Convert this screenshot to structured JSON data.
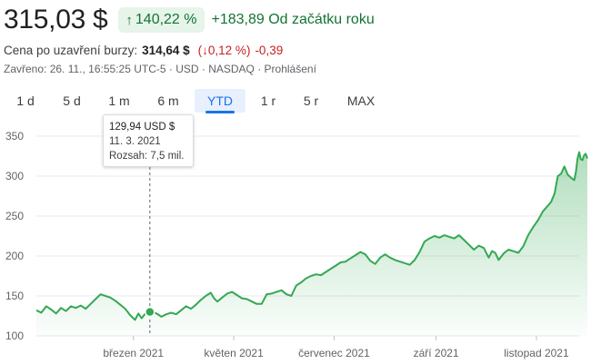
{
  "header": {
    "price": "315,03 $",
    "change_pct": "140,22 %",
    "change_abs": "+183,89 Od začátku roku",
    "close_label": "Cena po uzavření burzy:",
    "close_value": "314,64 $",
    "close_change_pct": "0,12 %",
    "close_change_abs": "-0,39",
    "meta": "Zavřeno: 26. 11., 16:55:25 UTC-5 · USD · NASDAQ · Prohlášení"
  },
  "tabs": [
    {
      "label": "1 d",
      "active": false
    },
    {
      "label": "5 d",
      "active": false
    },
    {
      "label": "1 m",
      "active": false
    },
    {
      "label": "6 m",
      "active": false
    },
    {
      "label": "YTD",
      "active": true
    },
    {
      "label": "1 r",
      "active": false
    },
    {
      "label": "5 r",
      "active": false
    },
    {
      "label": "MAX",
      "active": false
    }
  ],
  "tooltip": {
    "price": "129,94 USD $",
    "date": "11. 3. 2021",
    "volume": "Rozsah: 7,5 mil."
  },
  "colors": {
    "line": "#34a853",
    "fill_top": "#34a853",
    "grid": "#e8eaed",
    "axis_text": "#5f6368",
    "positive": "#137333",
    "negative": "#c5221f"
  },
  "chart_data": {
    "type": "area",
    "ylim": [
      100,
      350
    ],
    "y_ticks": [
      100,
      150,
      200,
      250,
      300,
      350
    ],
    "x_range_days": [
      0,
      330
    ],
    "x_ticks": [
      {
        "label": "březen 2021",
        "day": 59
      },
      {
        "label": "květen 2021",
        "day": 120
      },
      {
        "label": "červenec 2021",
        "day": 181
      },
      {
        "label": "září 2021",
        "day": 243
      },
      {
        "label": "listopad 2021",
        "day": 304
      }
    ],
    "highlight": {
      "day": 69,
      "value": 130
    },
    "series": [
      {
        "values": [
          [
            0,
            132
          ],
          [
            3,
            129
          ],
          [
            6,
            137
          ],
          [
            9,
            133
          ],
          [
            12,
            128
          ],
          [
            15,
            135
          ],
          [
            18,
            131
          ],
          [
            21,
            137
          ],
          [
            24,
            135
          ],
          [
            27,
            138
          ],
          [
            30,
            134
          ],
          [
            33,
            140
          ],
          [
            36,
            146
          ],
          [
            39,
            152
          ],
          [
            42,
            150
          ],
          [
            45,
            148
          ],
          [
            48,
            144
          ],
          [
            51,
            139
          ],
          [
            54,
            134
          ],
          [
            57,
            126
          ],
          [
            60,
            120
          ],
          [
            62,
            128
          ],
          [
            64,
            122
          ],
          [
            67,
            130
          ],
          [
            70,
            131
          ],
          [
            73,
            128
          ],
          [
            76,
            124
          ],
          [
            79,
            127
          ],
          [
            82,
            129
          ],
          [
            85,
            127
          ],
          [
            88,
            132
          ],
          [
            91,
            137
          ],
          [
            94,
            134
          ],
          [
            97,
            139
          ],
          [
            100,
            145
          ],
          [
            103,
            150
          ],
          [
            106,
            154
          ],
          [
            108,
            147
          ],
          [
            110,
            143
          ],
          [
            113,
            148
          ],
          [
            116,
            153
          ],
          [
            119,
            155
          ],
          [
            122,
            151
          ],
          [
            125,
            147
          ],
          [
            128,
            146
          ],
          [
            131,
            143
          ],
          [
            134,
            140
          ],
          [
            137,
            140
          ],
          [
            140,
            152
          ],
          [
            143,
            153
          ],
          [
            146,
            155
          ],
          [
            149,
            157
          ],
          [
            152,
            152
          ],
          [
            155,
            150
          ],
          [
            158,
            163
          ],
          [
            161,
            167
          ],
          [
            164,
            172
          ],
          [
            167,
            175
          ],
          [
            170,
            177
          ],
          [
            173,
            176
          ],
          [
            176,
            180
          ],
          [
            179,
            184
          ],
          [
            182,
            188
          ],
          [
            185,
            192
          ],
          [
            188,
            193
          ],
          [
            191,
            197
          ],
          [
            194,
            201
          ],
          [
            197,
            205
          ],
          [
            200,
            202
          ],
          [
            203,
            194
          ],
          [
            206,
            190
          ],
          [
            209,
            198
          ],
          [
            212,
            202
          ],
          [
            215,
            198
          ],
          [
            218,
            195
          ],
          [
            221,
            193
          ],
          [
            224,
            191
          ],
          [
            227,
            189
          ],
          [
            230,
            195
          ],
          [
            233,
            205
          ],
          [
            236,
            218
          ],
          [
            239,
            222
          ],
          [
            242,
            225
          ],
          [
            245,
            223
          ],
          [
            248,
            226
          ],
          [
            251,
            224
          ],
          [
            254,
            222
          ],
          [
            257,
            226
          ],
          [
            260,
            220
          ],
          [
            263,
            214
          ],
          [
            266,
            208
          ],
          [
            269,
            213
          ],
          [
            272,
            210
          ],
          [
            275,
            198
          ],
          [
            277,
            206
          ],
          [
            279,
            204
          ],
          [
            281,
            195
          ],
          [
            284,
            203
          ],
          [
            287,
            208
          ],
          [
            290,
            206
          ],
          [
            293,
            204
          ],
          [
            296,
            212
          ],
          [
            299,
            226
          ],
          [
            302,
            236
          ],
          [
            305,
            245
          ],
          [
            308,
            256
          ],
          [
            311,
            263
          ],
          [
            313,
            268
          ],
          [
            315,
            278
          ],
          [
            317,
            300
          ],
          [
            319,
            303
          ],
          [
            321,
            312
          ],
          [
            323,
            302
          ],
          [
            325,
            298
          ],
          [
            327,
            295
          ],
          [
            328,
            305
          ],
          [
            329,
            322
          ],
          [
            330,
            330
          ],
          [
            331,
            321
          ],
          [
            332,
            320
          ],
          [
            333,
            326
          ],
          [
            334,
            328
          ],
          [
            335,
            322
          ]
        ]
      }
    ]
  }
}
